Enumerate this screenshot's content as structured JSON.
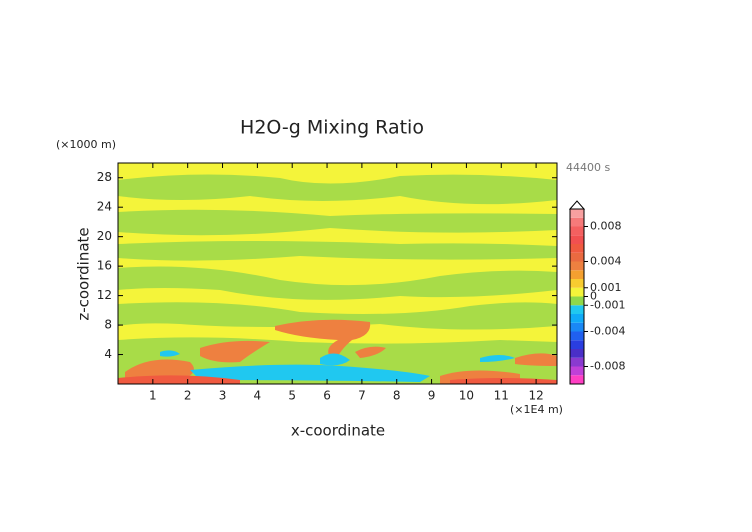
{
  "chart_data": {
    "type": "contour",
    "title": "H2O-g Mixing Ratio",
    "x_label": "x-coordinate",
    "y_label": "z-coordinate",
    "x_unit": "(×1E4 m)",
    "y_unit": "(×1000 m)",
    "time_label": "44400 s",
    "xlim": [
      0,
      12.6
    ],
    "xticks": [
      1,
      2,
      3,
      4,
      5,
      6,
      7,
      8,
      9,
      10,
      11,
      12
    ],
    "ylim": [
      0,
      30
    ],
    "yticks": [
      4,
      8,
      12,
      16,
      20,
      24,
      28
    ],
    "colorbar": {
      "levels": [
        -0.01,
        -0.009,
        -0.008,
        -0.007,
        -0.006,
        -0.005,
        -0.004,
        -0.003,
        -0.002,
        -0.001,
        0,
        0.001,
        0.002,
        0.003,
        0.004,
        0.005,
        0.006,
        0.007,
        0.008,
        0.009,
        0.01
      ],
      "colors": [
        "#ff3fc4",
        "#c040d8",
        "#8a3ad0",
        "#4a2fc8",
        "#2a3ee0",
        "#2060f0",
        "#1a88f5",
        "#10aaf8",
        "#20c8f0",
        "#8fd84a",
        "#f4f43a",
        "#f8cc30",
        "#f4a030",
        "#ee8040",
        "#ea6a40",
        "#f05a40",
        "#f25050",
        "#f46060",
        "#f67a7a",
        "#f8a0a0"
      ],
      "ticks": [
        -0.008,
        -0.004,
        -0.001,
        0,
        0.001,
        0.004,
        0.008
      ]
    }
  }
}
